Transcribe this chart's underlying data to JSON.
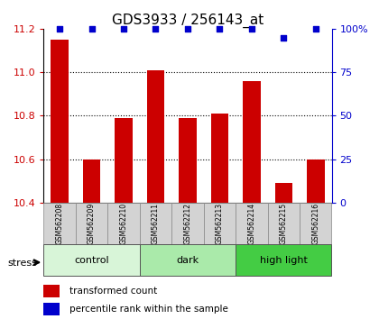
{
  "title": "GDS3933 / 256143_at",
  "samples": [
    "GSM562208",
    "GSM562209",
    "GSM562210",
    "GSM562211",
    "GSM562212",
    "GSM562213",
    "GSM562214",
    "GSM562215",
    "GSM562216"
  ],
  "bar_values": [
    11.15,
    10.6,
    10.79,
    11.01,
    10.79,
    10.81,
    10.96,
    10.49,
    10.6
  ],
  "percentile_values": [
    100,
    100,
    100,
    100,
    100,
    100,
    100,
    95,
    100
  ],
  "ylim_left": [
    10.4,
    11.2
  ],
  "ylim_right": [
    0,
    100
  ],
  "yticks_left": [
    10.4,
    10.6,
    10.8,
    11.0,
    11.2
  ],
  "yticks_right": [
    0,
    25,
    50,
    75,
    100
  ],
  "grid_yticks": [
    10.6,
    10.8,
    11.0
  ],
  "groups": [
    {
      "label": "control",
      "start": 0,
      "end": 3,
      "color": "#d8f5d8"
    },
    {
      "label": "dark",
      "start": 3,
      "end": 6,
      "color": "#aaeaaa"
    },
    {
      "label": "high light",
      "start": 6,
      "end": 9,
      "color": "#44cc44"
    }
  ],
  "bar_color": "#cc0000",
  "dot_color": "#0000cc",
  "stress_label": "stress",
  "legend_bar_label": "transformed count",
  "legend_dot_label": "percentile rank within the sample",
  "left_axis_color": "#cc0000",
  "right_axis_color": "#0000cc",
  "title_fontsize": 11,
  "tick_fontsize": 8,
  "sample_fontsize": 5.5,
  "group_fontsize": 8,
  "legend_fontsize": 7.5
}
